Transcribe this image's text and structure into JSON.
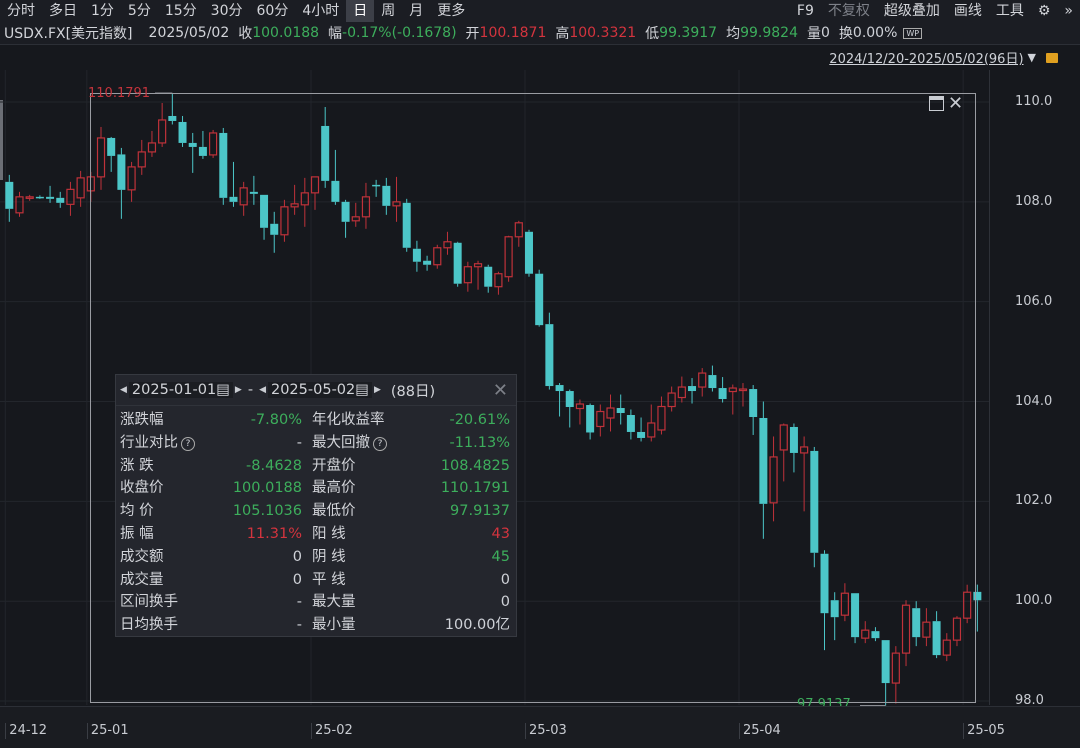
{
  "toolbar": {
    "periods": [
      "分时",
      "多日",
      "1分",
      "5分",
      "15分",
      "30分",
      "60分",
      "4小时",
      "日",
      "周",
      "月",
      "更多"
    ],
    "active_period": "日",
    "right": [
      "F9",
      "不复权",
      "超级叠加",
      "画线",
      "工具"
    ],
    "settings_icon": "gear-icon",
    "more_icon": "double-chevron-right-icon"
  },
  "info": {
    "symbol": "USDX.FX[美元指数]",
    "date": "2025/05/02",
    "close_label": "收",
    "close": "100.0188",
    "change_label": "幅",
    "change": "-0.17%(-0.1678)",
    "open_label": "开",
    "open": "100.1871",
    "high_label": "高",
    "high": "100.3321",
    "low_label": "低",
    "low": "99.3917",
    "avg_label": "均",
    "avg": "99.9824",
    "vol_label": "量",
    "vol": "0",
    "turnover_label": "换",
    "turnover": "0.00%",
    "wp_icon": "WP"
  },
  "range": {
    "text": "2024/12/20-2025/05/02(96日)",
    "dropdown_icon": "triangle-down-icon",
    "lock_icon": "lock-icon"
  },
  "colors": {
    "up": "#c0323a",
    "down": "#4cc6c8",
    "green_text": "#3dae5c",
    "red_text": "#d3343e",
    "background": "#16181d"
  },
  "chart_data": {
    "type": "candlestick",
    "ylim": [
      97.6,
      111.4
    ],
    "yticks": [
      "110.0",
      "108.0",
      "106.0",
      "104.0",
      "102.0",
      "100.0",
      "98.0"
    ],
    "xticks": [
      {
        "label": "24-12",
        "index": 0
      },
      {
        "label": "25-01",
        "index": 8
      },
      {
        "label": "25-02",
        "index": 30
      },
      {
        "label": "25-03",
        "index": 51
      },
      {
        "label": "25-04",
        "index": 72
      },
      {
        "label": "25-05",
        "index": 94
      }
    ],
    "grid": true,
    "max_marker": {
      "label": "110.1791",
      "index": 16
    },
    "min_marker": {
      "label": "97.9137",
      "index": 86
    },
    "selection": {
      "start_index": 8,
      "end_index": 95
    },
    "ohlc": [
      [
        108.4,
        108.54,
        107.6,
        107.86
      ],
      [
        107.78,
        108.2,
        107.7,
        108.1
      ],
      [
        108.08,
        108.14,
        108.02,
        108.1
      ],
      [
        108.1,
        108.13,
        108.06,
        108.09
      ],
      [
        108.1,
        108.32,
        107.98,
        108.06
      ],
      [
        108.08,
        108.2,
        107.88,
        107.98
      ],
      [
        107.95,
        108.4,
        107.72,
        108.25
      ],
      [
        108.08,
        108.62,
        107.9,
        108.48
      ],
      [
        108.22,
        108.6,
        108.0,
        108.5
      ],
      [
        108.5,
        109.5,
        108.24,
        109.28
      ],
      [
        109.28,
        109.3,
        108.6,
        108.92
      ],
      [
        108.95,
        109.08,
        107.66,
        108.24
      ],
      [
        108.24,
        108.8,
        108.0,
        108.7
      ],
      [
        108.7,
        109.24,
        108.54,
        109.0
      ],
      [
        109.0,
        109.42,
        108.9,
        109.18
      ],
      [
        109.18,
        109.98,
        109.1,
        109.64
      ],
      [
        109.72,
        110.18,
        109.55,
        109.62
      ],
      [
        109.6,
        109.72,
        109.1,
        109.18
      ],
      [
        109.18,
        109.38,
        108.58,
        109.1
      ],
      [
        109.1,
        109.42,
        108.86,
        108.92
      ],
      [
        108.94,
        109.44,
        108.88,
        109.38
      ],
      [
        109.38,
        109.48,
        107.94,
        108.08
      ],
      [
        108.1,
        108.8,
        107.9,
        108.0
      ],
      [
        107.94,
        108.4,
        107.72,
        108.28
      ],
      [
        108.2,
        108.52,
        107.94,
        108.16
      ],
      [
        108.14,
        108.14,
        107.24,
        107.48
      ],
      [
        107.56,
        107.8,
        106.98,
        107.34
      ],
      [
        107.34,
        108.04,
        107.2,
        107.9
      ],
      [
        107.9,
        108.34,
        107.74,
        107.96
      ],
      [
        107.94,
        108.48,
        107.5,
        108.18
      ],
      [
        108.18,
        108.5,
        107.84,
        108.5
      ],
      [
        109.52,
        109.9,
        108.28,
        108.42
      ],
      [
        108.42,
        109.04,
        107.94,
        108.0
      ],
      [
        108.0,
        108.04,
        107.28,
        107.6
      ],
      [
        107.62,
        107.98,
        107.5,
        107.7
      ],
      [
        107.7,
        108.38,
        107.46,
        108.1
      ],
      [
        108.34,
        108.44,
        108.1,
        108.32
      ],
      [
        108.32,
        108.48,
        107.74,
        107.92
      ],
      [
        107.92,
        108.5,
        107.6,
        108.0
      ],
      [
        107.98,
        108.06,
        107.0,
        107.08
      ],
      [
        107.06,
        107.22,
        106.6,
        106.8
      ],
      [
        106.82,
        106.92,
        106.62,
        106.74
      ],
      [
        106.74,
        107.14,
        106.66,
        107.08
      ],
      [
        107.08,
        107.4,
        106.94,
        107.2
      ],
      [
        107.18,
        107.2,
        106.3,
        106.36
      ],
      [
        106.38,
        106.8,
        106.2,
        106.7
      ],
      [
        106.7,
        106.82,
        106.24,
        106.76
      ],
      [
        106.7,
        106.74,
        106.18,
        106.3
      ],
      [
        106.3,
        106.6,
        106.14,
        106.56
      ],
      [
        106.5,
        107.32,
        106.4,
        107.3
      ],
      [
        107.3,
        107.62,
        107.1,
        107.58
      ],
      [
        107.4,
        107.44,
        106.5,
        106.56
      ],
      [
        106.56,
        106.64,
        105.5,
        105.53
      ],
      [
        105.55,
        105.78,
        104.24,
        104.31
      ],
      [
        104.33,
        104.37,
        103.7,
        104.21
      ],
      [
        104.21,
        104.24,
        103.48,
        103.89
      ],
      [
        103.86,
        104.04,
        103.54,
        103.95
      ],
      [
        103.93,
        103.96,
        103.24,
        103.38
      ],
      [
        103.5,
        103.94,
        103.3,
        103.8
      ],
      [
        103.67,
        104.14,
        103.4,
        103.87
      ],
      [
        103.87,
        104.14,
        103.54,
        103.77
      ],
      [
        103.73,
        103.84,
        103.24,
        103.39
      ],
      [
        103.39,
        103.68,
        103.2,
        103.27
      ],
      [
        103.29,
        103.94,
        103.2,
        103.57
      ],
      [
        103.43,
        104.1,
        103.34,
        103.9
      ],
      [
        103.9,
        104.3,
        103.8,
        104.17
      ],
      [
        104.08,
        104.5,
        103.98,
        104.29
      ],
      [
        104.31,
        104.47,
        103.96,
        104.21
      ],
      [
        104.29,
        104.67,
        104.1,
        104.57
      ],
      [
        104.53,
        104.72,
        104.2,
        104.27
      ],
      [
        104.27,
        104.49,
        103.98,
        104.05
      ],
      [
        104.2,
        104.34,
        103.74,
        104.27
      ],
      [
        104.22,
        104.37,
        103.9,
        104.25
      ],
      [
        104.25,
        104.33,
        103.33,
        103.69
      ],
      [
        103.67,
        104.0,
        101.25,
        101.95
      ],
      [
        101.97,
        103.3,
        101.6,
        102.89
      ],
      [
        103.03,
        103.56,
        102.4,
        103.53
      ],
      [
        103.49,
        103.56,
        102.58,
        102.97
      ],
      [
        102.97,
        103.3,
        101.8,
        103.09
      ],
      [
        103.01,
        103.09,
        100.68,
        100.97
      ],
      [
        100.95,
        101.02,
        99.02,
        99.76
      ],
      [
        100.02,
        100.18,
        99.22,
        99.68
      ],
      [
        99.72,
        100.36,
        99.6,
        100.16
      ],
      [
        100.16,
        100.16,
        99.16,
        99.28
      ],
      [
        99.26,
        99.6,
        99.16,
        99.42
      ],
      [
        99.4,
        99.48,
        99.2,
        99.26
      ],
      [
        99.22,
        99.22,
        97.91,
        98.36
      ],
      [
        98.36,
        99.1,
        97.95,
        98.96
      ],
      [
        98.96,
        100.02,
        98.7,
        99.92
      ],
      [
        99.86,
        100.0,
        99.1,
        99.28
      ],
      [
        99.28,
        99.86,
        99.1,
        99.58
      ],
      [
        99.6,
        99.8,
        98.86,
        98.92
      ],
      [
        98.92,
        99.36,
        98.8,
        99.22
      ],
      [
        99.22,
        99.7,
        99.1,
        99.66
      ],
      [
        99.66,
        100.33,
        99.56,
        100.18
      ],
      [
        100.1871,
        100.3321,
        99.3917,
        100.0188
      ]
    ]
  },
  "panel": {
    "start_date": "2025-01-01",
    "sep": "-",
    "end_date": "2025-05-02",
    "days": "(88日)",
    "rows": [
      {
        "k": "涨跌幅",
        "v": "-7.80%",
        "c": "g",
        "k2": "年化收益率",
        "v2": "-20.61%",
        "c2": "g"
      },
      {
        "k": "行业对比",
        "q": true,
        "v": "-",
        "c": "",
        "k2": "最大回撤",
        "q2": true,
        "v2": "-11.13%",
        "c2": "g"
      },
      {
        "k": "涨 跌",
        "v": "-8.4628",
        "c": "g",
        "k2": "开盘价",
        "v2": "108.4825",
        "c2": "g"
      },
      {
        "k": "收盘价",
        "v": "100.0188",
        "c": "g",
        "k2": "最高价",
        "v2": "110.1791",
        "c2": "g"
      },
      {
        "k": "均 价",
        "v": "105.1036",
        "c": "g",
        "k2": "最低价",
        "v2": "97.9137",
        "c2": "g"
      },
      {
        "k": "振 幅",
        "v": "11.31%",
        "c": "r",
        "k2": "阳 线",
        "v2": "43",
        "c2": "r"
      },
      {
        "k": "成交额",
        "v": "0",
        "c": "",
        "k2": "阴 线",
        "v2": "45",
        "c2": "g"
      },
      {
        "k": "成交量",
        "v": "0",
        "c": "",
        "k2": "平 线",
        "v2": "0",
        "c2": ""
      },
      {
        "k": "区间换手",
        "v": "-",
        "c": "",
        "k2": "最大量",
        "v2": "0",
        "c2": ""
      },
      {
        "k": "日均换手",
        "v": "-",
        "c": "",
        "k2": "最小量",
        "v2": "100.00亿",
        "c2": ""
      }
    ]
  }
}
